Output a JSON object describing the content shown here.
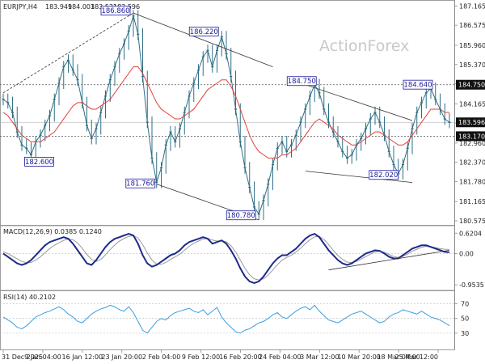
{
  "chart_data": {
    "type": "candlestick",
    "symbol_header": "EURJPY,H4",
    "ohlc_header": [
      "183.949",
      "184.003",
      "183.531",
      "183.596"
    ],
    "watermark": "ActionForex",
    "colors": {
      "price": "#2f6f86",
      "ma": "#e0403a",
      "lines": "#333333",
      "dotted": "#555555",
      "macd": "#1c2a8a",
      "signal": "#999999",
      "rsi": "#3a9fe0"
    },
    "price_axis": {
      "range": [
        180.5,
        187.25
      ],
      "ticks": [
        "187.165",
        "186.575",
        "185.960",
        "185.370",
        "184.780",
        "184.165",
        "183.575",
        "182.960",
        "182.370",
        "181.780",
        "181.165",
        "180.575"
      ]
    },
    "current_price": "183.596",
    "horizontal_levels": [
      "184.750",
      "183.170"
    ],
    "price_series": [
      184.3,
      184.2,
      183.9,
      183.3,
      182.9,
      182.8,
      182.6,
      183.0,
      183.2,
      183.5,
      183.8,
      184.3,
      184.8,
      185.3,
      185.5,
      185.2,
      184.9,
      184.2,
      183.5,
      183.1,
      183.4,
      183.9,
      184.4,
      184.9,
      185.3,
      185.7,
      186.0,
      186.4,
      186.86,
      186.3,
      185.0,
      183.6,
      182.5,
      181.76,
      182.2,
      182.9,
      183.3,
      183.0,
      183.4,
      183.9,
      184.4,
      184.8,
      185.2,
      185.6,
      185.8,
      185.3,
      185.8,
      186.22,
      185.7,
      185.0,
      184.0,
      183.0,
      182.2,
      181.6,
      181.0,
      180.78,
      181.2,
      181.7,
      182.3,
      182.8,
      183.0,
      182.7,
      182.9,
      183.2,
      183.6,
      184.0,
      184.4,
      184.75,
      184.5,
      184.0,
      183.6,
      183.3,
      183.0,
      182.7,
      182.5,
      182.6,
      182.9,
      183.1,
      183.4,
      183.7,
      183.9,
      183.6,
      183.2,
      182.7,
      182.3,
      182.02,
      182.3,
      182.8,
      183.4,
      183.9,
      184.2,
      184.5,
      184.64,
      184.3,
      184.0,
      183.7,
      183.596
    ],
    "ma_series": [
      183.9,
      183.8,
      183.6,
      183.4,
      183.2,
      183.1,
      183.0,
      183.0,
      183.0,
      183.1,
      183.2,
      183.3,
      183.5,
      183.7,
      183.9,
      184.1,
      184.2,
      184.2,
      184.1,
      184.0,
      184.0,
      184.1,
      184.2,
      184.3,
      184.5,
      184.7,
      184.9,
      185.1,
      185.3,
      185.3,
      185.1,
      184.8,
      184.5,
      184.2,
      184.0,
      183.9,
      183.8,
      183.7,
      183.7,
      183.8,
      183.9,
      184.0,
      184.2,
      184.4,
      184.6,
      184.7,
      184.8,
      184.9,
      184.9,
      184.7,
      184.4,
      184.0,
      183.6,
      183.2,
      182.9,
      182.7,
      182.6,
      182.5,
      182.5,
      182.5,
      182.6,
      182.6,
      182.7,
      182.8,
      183.0,
      183.2,
      183.4,
      183.6,
      183.7,
      183.6,
      183.5,
      183.4,
      183.2,
      183.1,
      183.0,
      182.9,
      182.9,
      183.0,
      183.1,
      183.2,
      183.3,
      183.3,
      183.2,
      183.1,
      183.0,
      182.9,
      182.9,
      183.0,
      183.2,
      183.4,
      183.6,
      183.8,
      184.0,
      184.0,
      184.0,
      183.9,
      183.9
    ],
    "annotations": [
      {
        "label": "186.860"
      },
      {
        "label": "186.220"
      },
      {
        "label": "184.750"
      },
      {
        "label": "184.640"
      },
      {
        "label": "182.600"
      },
      {
        "label": "181.760"
      },
      {
        "label": "180.780"
      },
      {
        "label": "182.020"
      }
    ],
    "macd": {
      "header": "MACD(12,26,9) 0.0385 0.1240",
      "range": [
        -1.05,
        0.75
      ],
      "ticks": [
        "0.6204",
        "0.00",
        "-0.9535"
      ],
      "macd_series": [
        0.0,
        -0.1,
        -0.2,
        -0.3,
        -0.35,
        -0.3,
        -0.2,
        -0.05,
        0.1,
        0.25,
        0.35,
        0.4,
        0.45,
        0.5,
        0.45,
        0.3,
        0.1,
        -0.1,
        -0.3,
        -0.35,
        -0.2,
        0.0,
        0.2,
        0.35,
        0.45,
        0.5,
        0.55,
        0.6,
        0.55,
        0.3,
        -0.05,
        -0.3,
        -0.4,
        -0.35,
        -0.25,
        -0.15,
        -0.05,
        0.0,
        0.1,
        0.25,
        0.35,
        0.4,
        0.45,
        0.5,
        0.45,
        0.3,
        0.35,
        0.4,
        0.3,
        0.1,
        -0.15,
        -0.45,
        -0.7,
        -0.85,
        -0.9,
        -0.85,
        -0.7,
        -0.5,
        -0.3,
        -0.15,
        -0.05,
        -0.05,
        0.05,
        0.15,
        0.3,
        0.45,
        0.55,
        0.6,
        0.5,
        0.3,
        0.1,
        -0.05,
        -0.2,
        -0.3,
        -0.35,
        -0.3,
        -0.2,
        -0.1,
        0.0,
        0.05,
        0.1,
        0.08,
        0.0,
        -0.1,
        -0.15,
        -0.15,
        -0.05,
        0.05,
        0.15,
        0.2,
        0.25,
        0.25,
        0.2,
        0.15,
        0.1,
        0.05,
        0.0385
      ],
      "signal_series": [
        0.05,
        0.0,
        -0.08,
        -0.16,
        -0.24,
        -0.28,
        -0.27,
        -0.2,
        -0.1,
        0.03,
        0.15,
        0.25,
        0.33,
        0.4,
        0.44,
        0.42,
        0.32,
        0.16,
        -0.03,
        -0.18,
        -0.24,
        -0.18,
        -0.04,
        0.12,
        0.26,
        0.38,
        0.46,
        0.52,
        0.55,
        0.47,
        0.27,
        0.02,
        -0.2,
        -0.32,
        -0.33,
        -0.27,
        -0.18,
        -0.1,
        -0.02,
        0.1,
        0.22,
        0.31,
        0.38,
        0.44,
        0.46,
        0.41,
        0.38,
        0.39,
        0.36,
        0.24,
        0.05,
        -0.2,
        -0.45,
        -0.65,
        -0.77,
        -0.81,
        -0.77,
        -0.66,
        -0.5,
        -0.34,
        -0.2,
        -0.12,
        -0.05,
        0.05,
        0.16,
        0.3,
        0.42,
        0.51,
        0.52,
        0.43,
        0.27,
        0.1,
        -0.06,
        -0.18,
        -0.26,
        -0.28,
        -0.24,
        -0.17,
        -0.09,
        -0.02,
        0.05,
        0.07,
        0.04,
        -0.03,
        -0.09,
        -0.12,
        -0.09,
        -0.02,
        0.07,
        0.13,
        0.19,
        0.22,
        0.21,
        0.18,
        0.15,
        0.13,
        0.124
      ]
    },
    "rsi": {
      "header": "RSI(14) 40.2102",
      "range": [
        10,
        85
      ],
      "ticks": [
        "70",
        "50",
        "30"
      ],
      "series": [
        52,
        48,
        44,
        38,
        36,
        40,
        46,
        52,
        55,
        58,
        60,
        63,
        66,
        62,
        56,
        52,
        46,
        44,
        50,
        56,
        60,
        63,
        65,
        68,
        66,
        62,
        60,
        66,
        58,
        46,
        34,
        30,
        38,
        46,
        50,
        48,
        54,
        58,
        60,
        62,
        64,
        60,
        58,
        62,
        55,
        60,
        65,
        52,
        44,
        38,
        32,
        30,
        34,
        36,
        40,
        44,
        46,
        50,
        55,
        58,
        52,
        50,
        55,
        60,
        64,
        66,
        62,
        68,
        60,
        54,
        48,
        46,
        44,
        48,
        52,
        56,
        58,
        60,
        56,
        52,
        48,
        44,
        46,
        52,
        56,
        58,
        62,
        60,
        58,
        56,
        60,
        56,
        52,
        50,
        48,
        44,
        40.21
      ]
    },
    "x_axis": {
      "ticks": [
        "31 Dec 2025",
        "9 Jan 04:00",
        "16 Jan 12:00",
        "23 Jan 20:00",
        "2 Feb 04:00",
        "9 Feb 12:00",
        "16 Feb 20:00",
        "24 Feb 04:00",
        "3 Mar 12:00",
        "10 Mar 20:00",
        "18 Mar 04:00",
        "25 Mar 12:00"
      ]
    }
  }
}
